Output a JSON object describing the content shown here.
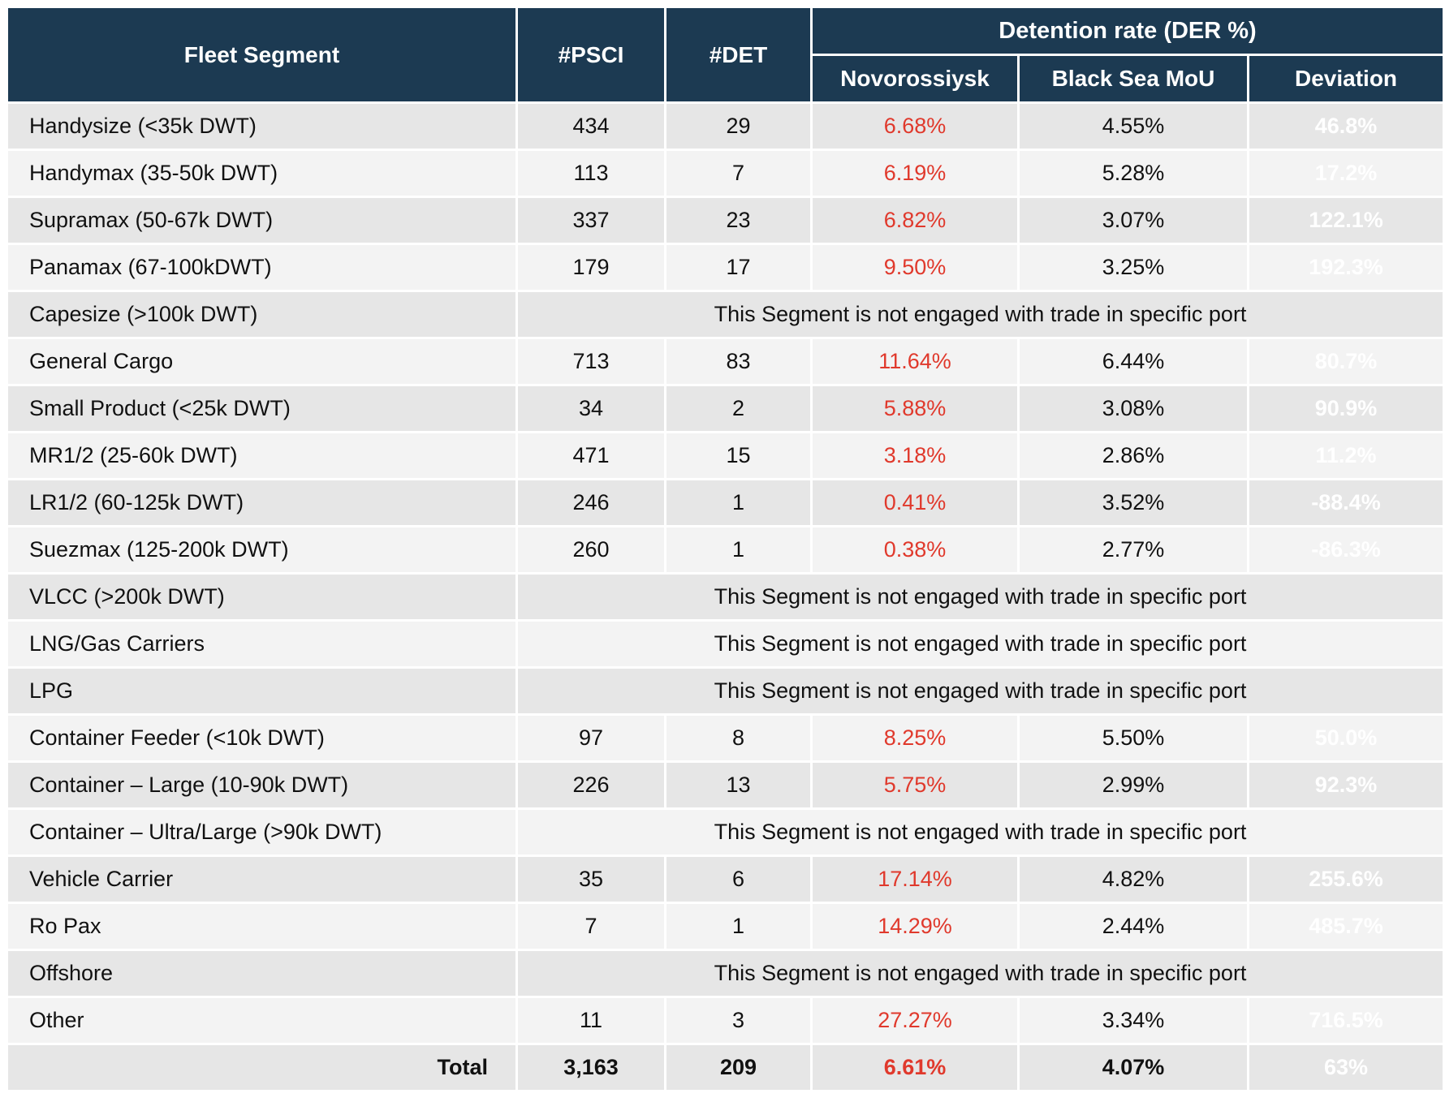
{
  "chart_data": {
    "type": "table",
    "header": {
      "fleet_segment": "Fleet Segment",
      "psci": "#PSCI",
      "det": "#DET",
      "detention_rate_group": "Detention rate (DER %)",
      "novorossiysk": "Novorossiysk",
      "black_sea_mou": "Black Sea MoU",
      "deviation": "Deviation"
    },
    "not_engaged_note": "This Segment is not engaged with trade in specific port",
    "rows": [
      {
        "segment": "Handysize (<35k DWT)",
        "engaged": true,
        "psci": "434",
        "det": "29",
        "novorossiysk": "6.68%",
        "black_sea_mou": "4.55%",
        "deviation": "46.8%",
        "deviation_color": "red"
      },
      {
        "segment": "Handymax (35-50k DWT)",
        "engaged": true,
        "psci": "113",
        "det": "7",
        "novorossiysk": "6.19%",
        "black_sea_mou": "5.28%",
        "deviation": "17.2%",
        "deviation_color": "red"
      },
      {
        "segment": "Supramax (50-67k DWT)",
        "engaged": true,
        "psci": "337",
        "det": "23",
        "novorossiysk": "6.82%",
        "black_sea_mou": "3.07%",
        "deviation": "122.1%",
        "deviation_color": "red"
      },
      {
        "segment": "Panamax (67-100kDWT)",
        "engaged": true,
        "psci": "179",
        "det": "17",
        "novorossiysk": "9.50%",
        "black_sea_mou": "3.25%",
        "deviation": "192.3%",
        "deviation_color": "red"
      },
      {
        "segment": "Capesize (>100k DWT)",
        "engaged": false
      },
      {
        "segment": "General Cargo",
        "engaged": true,
        "psci": "713",
        "det": "83",
        "novorossiysk": "11.64%",
        "black_sea_mou": "6.44%",
        "deviation": "80.7%",
        "deviation_color": "red"
      },
      {
        "segment": "Small Product (<25k DWT)",
        "engaged": true,
        "psci": "34",
        "det": "2",
        "novorossiysk": "5.88%",
        "black_sea_mou": "3.08%",
        "deviation": "90.9%",
        "deviation_color": "red"
      },
      {
        "segment": "MR1/2 (25-60k DWT)",
        "engaged": true,
        "psci": "471",
        "det": "15",
        "novorossiysk": "3.18%",
        "black_sea_mou": "2.86%",
        "deviation": "11.2%",
        "deviation_color": "red"
      },
      {
        "segment": "LR1/2 (60-125k DWT)",
        "engaged": true,
        "psci": "246",
        "det": "1",
        "novorossiysk": "0.41%",
        "black_sea_mou": "3.52%",
        "deviation": "-88.4%",
        "deviation_color": "green"
      },
      {
        "segment": "Suezmax (125-200k DWT)",
        "engaged": true,
        "psci": "260",
        "det": "1",
        "novorossiysk": "0.38%",
        "black_sea_mou": "2.77%",
        "deviation": "-86.3%",
        "deviation_color": "green"
      },
      {
        "segment": "VLCC (>200k DWT)",
        "engaged": false
      },
      {
        "segment": "LNG/Gas Carriers",
        "engaged": false
      },
      {
        "segment": "LPG",
        "engaged": false
      },
      {
        "segment": "Container Feeder (<10k DWT)",
        "engaged": true,
        "psci": "97",
        "det": "8",
        "novorossiysk": "8.25%",
        "black_sea_mou": "5.50%",
        "deviation": "50.0%",
        "deviation_color": "red"
      },
      {
        "segment": "Container – Large (10-90k DWT)",
        "engaged": true,
        "psci": "226",
        "det": "13",
        "novorossiysk": "5.75%",
        "black_sea_mou": "2.99%",
        "deviation": "92.3%",
        "deviation_color": "red"
      },
      {
        "segment": "Container – Ultra/Large (>90k DWT)",
        "engaged": false
      },
      {
        "segment": "Vehicle Carrier",
        "engaged": true,
        "psci": "35",
        "det": "6",
        "novorossiysk": "17.14%",
        "black_sea_mou": "4.82%",
        "deviation": "255.6%",
        "deviation_color": "red"
      },
      {
        "segment": "Ro Pax",
        "engaged": true,
        "psci": "7",
        "det": "1",
        "novorossiysk": "14.29%",
        "black_sea_mou": "2.44%",
        "deviation": "485.7%",
        "deviation_color": "red"
      },
      {
        "segment": "Offshore",
        "engaged": false
      },
      {
        "segment": "Other",
        "engaged": true,
        "psci": "11",
        "det": "3",
        "novorossiysk": "27.27%",
        "black_sea_mou": "3.34%",
        "deviation": "716.5%",
        "deviation_color": "red"
      },
      {
        "segment": "Total",
        "engaged": true,
        "total": true,
        "psci": "3,163",
        "det": "209",
        "novorossiysk": "6.61%",
        "black_sea_mou": "4.07%",
        "deviation": "63%",
        "deviation_color": "red"
      }
    ]
  },
  "colors": {
    "header_bg": "#1c3a52",
    "row_odd": "#e6e6e6",
    "row_even": "#f3f3f3",
    "badge_red": "#d93a2c",
    "badge_green": "#6ab04f",
    "red_text": "#e0392c",
    "text_dark": "#111111",
    "gap_white": "#ffffff"
  }
}
